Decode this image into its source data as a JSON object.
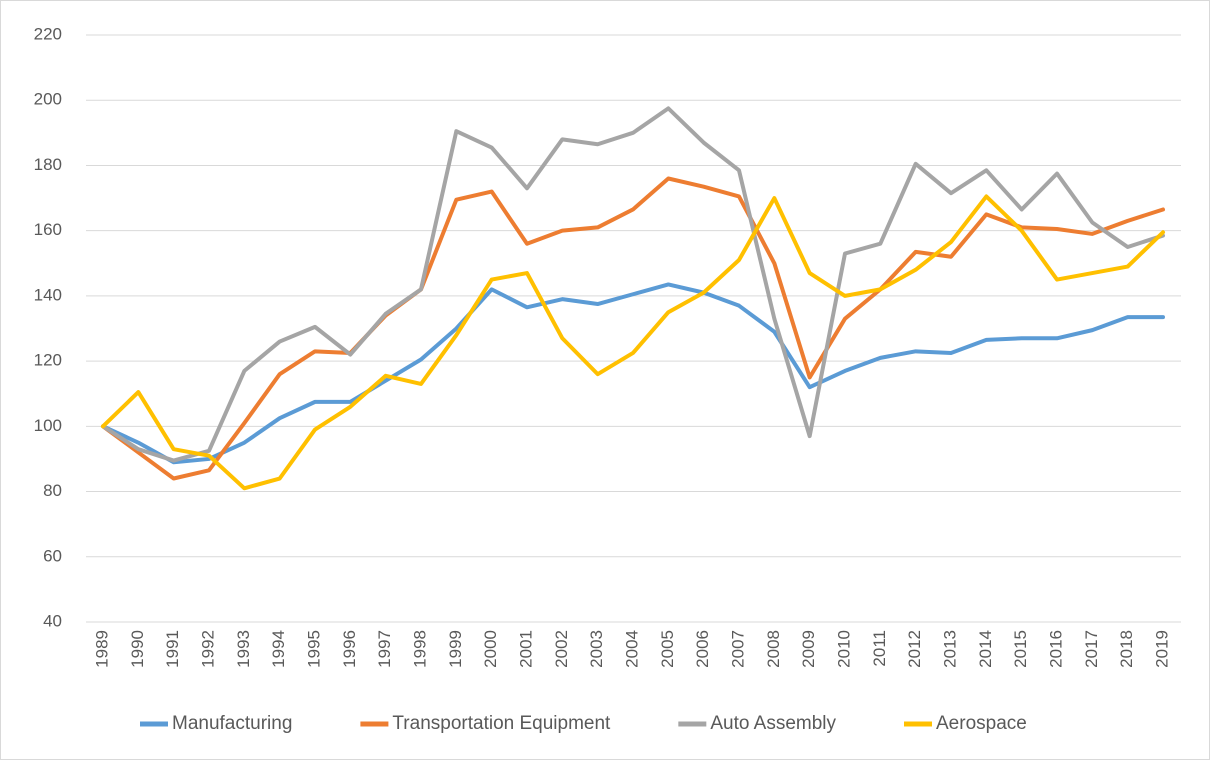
{
  "chart_data": {
    "type": "line",
    "categories": [
      "1989",
      "1990",
      "1991",
      "1992",
      "1993",
      "1994",
      "1995",
      "1996",
      "1997",
      "1998",
      "1999",
      "2000",
      "2001",
      "2002",
      "2003",
      "2004",
      "2005",
      "2006",
      "2007",
      "2008",
      "2009",
      "2010",
      "2011",
      "2012",
      "2013",
      "2014",
      "2015",
      "2016",
      "2017",
      "2018",
      "2019"
    ],
    "series": [
      {
        "name": "Manufacturing",
        "color": "#5b9bd5",
        "values": [
          100,
          95,
          89,
          90,
          95,
          102.5,
          107.5,
          107.5,
          114,
          120.5,
          130,
          142,
          136.5,
          139,
          137.5,
          140.5,
          143.5,
          141,
          137,
          129,
          112,
          117,
          121,
          123,
          122.5,
          126.5,
          127,
          127,
          129.5,
          133.5,
          133.5
        ]
      },
      {
        "name": "Transportation Equipment",
        "color": "#ed7d31",
        "values": [
          100,
          92,
          84,
          86.5,
          101,
          116,
          123,
          122.5,
          134,
          142,
          169.5,
          172,
          156,
          160,
          161,
          166.5,
          176,
          173.5,
          170.5,
          150,
          115,
          133,
          142,
          153.5,
          152,
          165,
          161,
          160.5,
          159,
          163,
          166.5
        ]
      },
      {
        "name": "Auto Assembly",
        "color": "#a5a5a5",
        "values": [
          100,
          93,
          89.5,
          92.5,
          117,
          126,
          130.5,
          122,
          134.5,
          142,
          190.5,
          185.5,
          173,
          188,
          186.5,
          190,
          197.5,
          187,
          178.5,
          133,
          97,
          153,
          156,
          180.5,
          171.5,
          178.5,
          166.5,
          177.5,
          162.5,
          155,
          158.5
        ]
      },
      {
        "name": "Aerospace",
        "color": "#ffc000",
        "values": [
          100,
          110.5,
          93,
          91,
          81,
          84,
          99,
          106,
          115.5,
          113,
          128,
          145,
          147,
          127,
          116,
          122.5,
          135,
          141,
          151,
          170,
          147,
          140,
          142,
          148,
          156.5,
          170.5,
          160,
          145,
          147,
          149,
          159.5
        ]
      }
    ],
    "ylim": [
      40,
      220
    ],
    "yticks": [
      40,
      60,
      80,
      100,
      120,
      140,
      160,
      180,
      200,
      220
    ],
    "grid": true,
    "legend": "bottom"
  }
}
